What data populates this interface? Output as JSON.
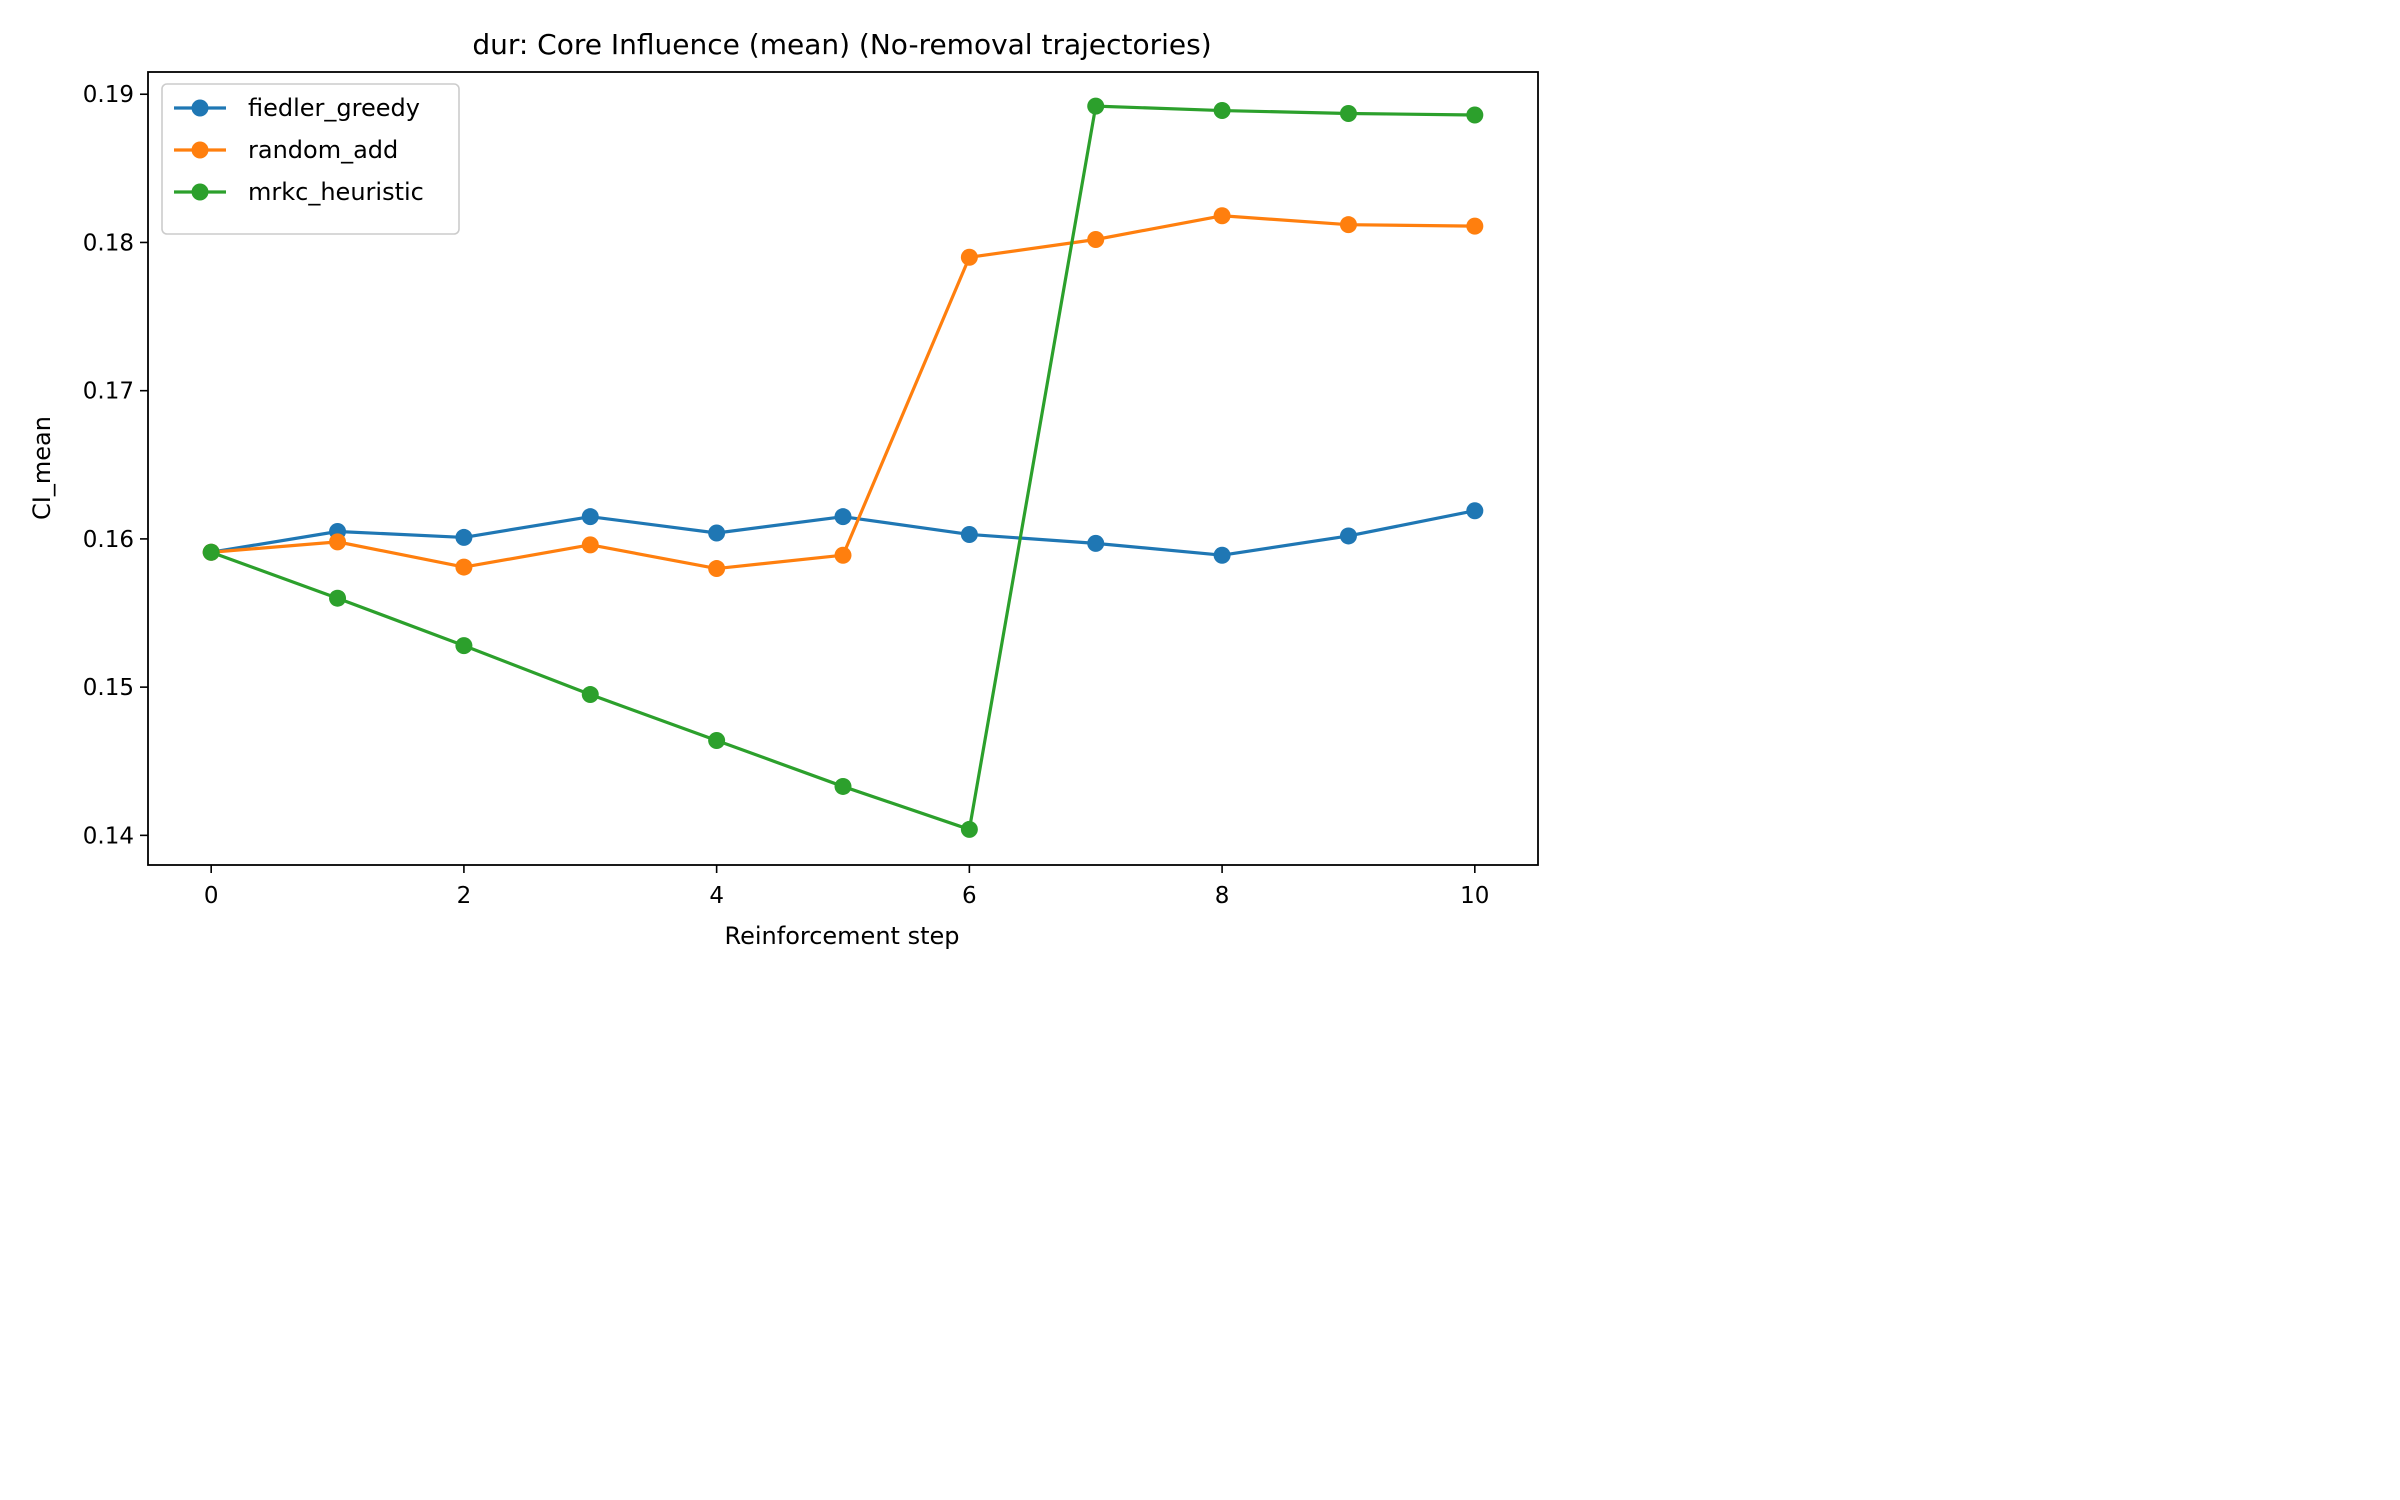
{
  "chart_data": {
    "type": "line",
    "title": "dur: Core Influence (mean) (No-removal trajectories)",
    "xlabel": "Reinforcement step",
    "ylabel": "CI_mean",
    "x": [
      0,
      1,
      2,
      3,
      4,
      5,
      6,
      7,
      8,
      9,
      10
    ],
    "xlim": [
      -0.5,
      10.5
    ],
    "ylim": [
      0.138,
      0.1915
    ],
    "xticks": [
      0,
      2,
      4,
      6,
      8,
      10
    ],
    "xtick_labels": [
      "0",
      "2",
      "4",
      "6",
      "8",
      "10"
    ],
    "yticks": [
      0.14,
      0.15,
      0.16,
      0.17,
      0.18,
      0.19
    ],
    "ytick_labels": [
      "0.14",
      "0.15",
      "0.16",
      "0.17",
      "0.18",
      "0.19"
    ],
    "grid": false,
    "legend_position": "top-left",
    "series": [
      {
        "name": "fiedler_greedy",
        "color": "#1f77b4",
        "values": [
          0.1591,
          0.1605,
          0.1601,
          0.1615,
          0.1604,
          0.1615,
          0.1603,
          0.1597,
          0.1589,
          0.1602,
          0.1619
        ]
      },
      {
        "name": "random_add",
        "color": "#ff7f0e",
        "values": [
          0.1591,
          0.1598,
          0.1581,
          0.1596,
          0.158,
          0.1589,
          0.179,
          0.1802,
          0.1818,
          0.1812,
          0.1811
        ]
      },
      {
        "name": "mrkc_heuristic",
        "color": "#2ca02c",
        "values": [
          0.1591,
          0.156,
          0.1528,
          0.1495,
          0.1464,
          0.1433,
          0.1404,
          0.1892,
          0.1889,
          0.1887,
          0.1886
        ]
      }
    ]
  }
}
